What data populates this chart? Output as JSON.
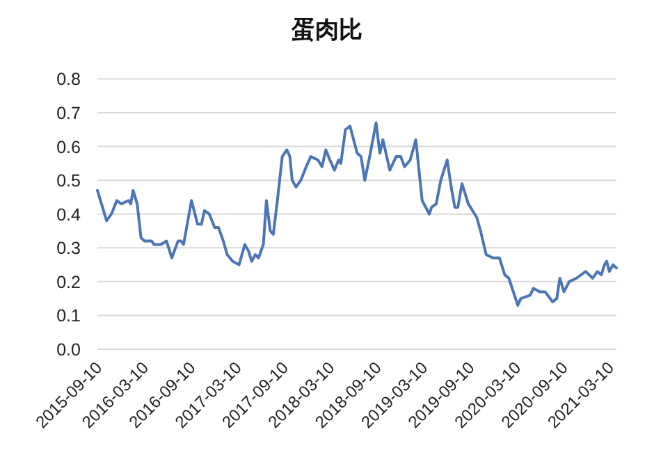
{
  "chart_data": {
    "type": "line",
    "title": "蛋肉比",
    "x": [
      "2015-09-10",
      "2015-10-16",
      "2015-11-04",
      "2015-11-25",
      "2015-12-13",
      "2016-01-10",
      "2016-01-19",
      "2016-01-28",
      "2016-02-13",
      "2016-02-28",
      "2016-03-13",
      "2016-04-10",
      "2016-04-19",
      "2016-05-16",
      "2016-06-07",
      "2016-06-28",
      "2016-07-22",
      "2016-08-03",
      "2016-08-13",
      "2016-09-13",
      "2016-10-07",
      "2016-10-22",
      "2016-11-03",
      "2016-11-22",
      "2016-12-13",
      "2016-12-28",
      "2017-01-16",
      "2017-01-31",
      "2017-02-22",
      "2017-03-19",
      "2017-04-10",
      "2017-04-25",
      "2017-05-07",
      "2017-05-22",
      "2017-06-03",
      "2017-06-22",
      "2017-07-04",
      "2017-07-19",
      "2017-07-31",
      "2017-08-16",
      "2017-09-04",
      "2017-09-22",
      "2017-10-04",
      "2017-10-13",
      "2017-10-28",
      "2017-11-16",
      "2017-12-07",
      "2017-12-25",
      "2018-01-22",
      "2018-02-07",
      "2018-02-22",
      "2018-03-10",
      "2018-03-28",
      "2018-04-13",
      "2018-04-22",
      "2018-05-10",
      "2018-05-28",
      "2018-06-25",
      "2018-07-10",
      "2018-07-25",
      "2018-08-13",
      "2018-09-07",
      "2018-09-22",
      "2018-10-04",
      "2018-10-31",
      "2018-11-25",
      "2018-12-13",
      "2018-12-28",
      "2019-01-19",
      "2019-02-10",
      "2019-03-07",
      "2019-04-04",
      "2019-04-13",
      "2019-05-01",
      "2019-05-19",
      "2019-06-13",
      "2019-07-01",
      "2019-07-13",
      "2019-07-25",
      "2019-08-10",
      "2019-09-04",
      "2019-10-07",
      "2019-10-22",
      "2019-11-13",
      "2019-12-10",
      "2020-01-04",
      "2020-01-25",
      "2020-02-10",
      "2020-03-16",
      "2020-03-28",
      "2020-05-04",
      "2020-05-16",
      "2020-06-10",
      "2020-07-01",
      "2020-07-31",
      "2020-08-16",
      "2020-08-28",
      "2020-09-13",
      "2020-10-04",
      "2020-11-01",
      "2020-12-07",
      "2021-01-04",
      "2021-01-22",
      "2021-02-07",
      "2021-02-19",
      "2021-02-28",
      "2021-03-10",
      "2021-03-25",
      "2021-04-07"
    ],
    "series": [
      {
        "color": "#4a76b5",
        "values": [
          0.47,
          0.38,
          0.4,
          0.44,
          0.43,
          0.44,
          0.43,
          0.47,
          0.43,
          0.33,
          0.32,
          0.32,
          0.31,
          0.31,
          0.32,
          0.27,
          0.32,
          0.32,
          0.31,
          0.44,
          0.37,
          0.37,
          0.41,
          0.4,
          0.36,
          0.36,
          0.32,
          0.28,
          0.26,
          0.25,
          0.31,
          0.29,
          0.26,
          0.28,
          0.27,
          0.31,
          0.44,
          0.35,
          0.34,
          0.44,
          0.57,
          0.59,
          0.57,
          0.5,
          0.48,
          0.5,
          0.54,
          0.57,
          0.56,
          0.54,
          0.59,
          0.56,
          0.53,
          0.56,
          0.55,
          0.65,
          0.66,
          0.58,
          0.57,
          0.5,
          0.57,
          0.67,
          0.58,
          0.62,
          0.53,
          0.57,
          0.57,
          0.54,
          0.56,
          0.62,
          0.44,
          0.4,
          0.42,
          0.43,
          0.5,
          0.56,
          0.47,
          0.42,
          0.42,
          0.49,
          0.43,
          0.39,
          0.35,
          0.28,
          0.27,
          0.27,
          0.22,
          0.21,
          0.13,
          0.15,
          0.16,
          0.18,
          0.17,
          0.17,
          0.14,
          0.15,
          0.21,
          0.17,
          0.2,
          0.21,
          0.23,
          0.21,
          0.23,
          0.22,
          0.25,
          0.26,
          0.23,
          0.25,
          0.24
        ]
      }
    ],
    "xlim": [
      "2015-09-10",
      "2021-04-07"
    ],
    "xticks": [
      "2015-09-10",
      "2016-03-10",
      "2016-09-10",
      "2017-03-10",
      "2017-09-10",
      "2018-03-10",
      "2018-09-10",
      "2019-03-10",
      "2019-09-10",
      "2020-03-10",
      "2020-09-10",
      "2021-03-10"
    ],
    "ylim": [
      0,
      0.8
    ],
    "yticks": [
      {
        "value": 0,
        "label": "0.0"
      },
      {
        "value": 0.1,
        "label": "0.1"
      },
      {
        "value": 0.2,
        "label": "0.2"
      },
      {
        "value": 0.3,
        "label": "0.3"
      },
      {
        "value": 0.4,
        "label": "0.4"
      },
      {
        "value": 0.5,
        "label": "0.5"
      },
      {
        "value": 0.6,
        "label": "0.6"
      },
      {
        "value": 0.7,
        "label": "0.7"
      },
      {
        "value": 0.8,
        "label": "0.8"
      }
    ],
    "grid": "y",
    "marker": "none",
    "line_style": "solid"
  }
}
